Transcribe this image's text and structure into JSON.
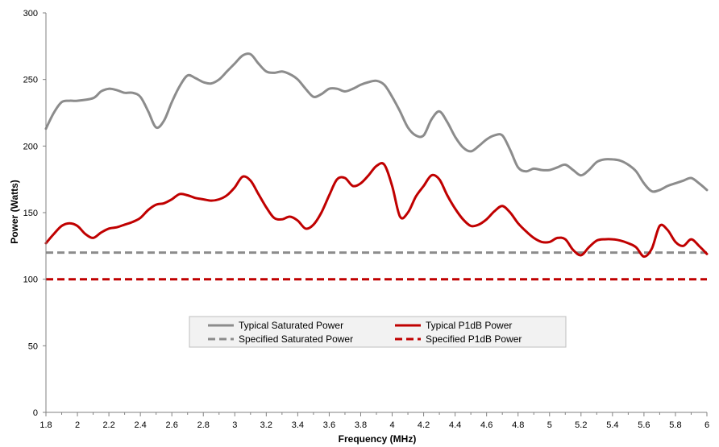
{
  "chart_data": {
    "type": "line",
    "xlabel": "Frequency (MHz)",
    "ylabel": "Power (Watts)",
    "xlim": [
      1.8,
      6
    ],
    "ylim": [
      0,
      300
    ],
    "x_ticks": [
      "1.8",
      "2",
      "2.2",
      "2.4",
      "2.6",
      "2.8",
      "3",
      "3.2",
      "3.4",
      "3.6",
      "3.8",
      "4",
      "4.2",
      "4.4",
      "4.6",
      "4.8",
      "5",
      "5.2",
      "5.4",
      "5.6",
      "5.8",
      "6"
    ],
    "x_tick_values": [
      1.8,
      2.0,
      2.2,
      2.4,
      2.6,
      2.8,
      3.0,
      3.2,
      3.4,
      3.6,
      3.8,
      4.0,
      4.2,
      4.4,
      4.6,
      4.8,
      5.0,
      5.2,
      5.4,
      5.6,
      5.8,
      6.0
    ],
    "y_ticks": [
      "0",
      "50",
      "100",
      "150",
      "200",
      "250",
      "300"
    ],
    "y_tick_values": [
      0,
      50,
      100,
      150,
      200,
      250,
      300
    ],
    "grid": false,
    "legend_position": "bottom-center",
    "series": [
      {
        "name": "Typical Saturated Power",
        "color": "#8c8c8c",
        "style": "solid",
        "x": [
          1.8,
          1.85,
          1.9,
          1.95,
          2.0,
          2.1,
          2.15,
          2.2,
          2.25,
          2.3,
          2.35,
          2.4,
          2.45,
          2.5,
          2.55,
          2.6,
          2.65,
          2.7,
          2.75,
          2.8,
          2.85,
          2.9,
          2.95,
          3.0,
          3.05,
          3.1,
          3.15,
          3.2,
          3.25,
          3.3,
          3.35,
          3.4,
          3.45,
          3.5,
          3.55,
          3.6,
          3.65,
          3.7,
          3.75,
          3.8,
          3.85,
          3.9,
          3.95,
          4.0,
          4.05,
          4.1,
          4.15,
          4.2,
          4.25,
          4.3,
          4.35,
          4.4,
          4.45,
          4.5,
          4.55,
          4.6,
          4.65,
          4.7,
          4.75,
          4.8,
          4.85,
          4.9,
          4.95,
          5.0,
          5.05,
          5.1,
          5.15,
          5.2,
          5.25,
          5.3,
          5.35,
          5.4,
          5.45,
          5.5,
          5.55,
          5.6,
          5.65,
          5.7,
          5.75,
          5.8,
          5.85,
          5.9,
          5.95,
          6.0
        ],
        "y": [
          213,
          225,
          233,
          234,
          234,
          236,
          241,
          243,
          242,
          240,
          240,
          237,
          226,
          214,
          219,
          233,
          245,
          253,
          251,
          248,
          247,
          250,
          256,
          262,
          268,
          269,
          262,
          256,
          255,
          256,
          254,
          250,
          243,
          237,
          239,
          243,
          243,
          241,
          243,
          246,
          248,
          249,
          246,
          237,
          226,
          214,
          208,
          208,
          220,
          226,
          218,
          207,
          199,
          196,
          200,
          205,
          208,
          208,
          197,
          184,
          181,
          183,
          182,
          182,
          184,
          186,
          182,
          178,
          182,
          188,
          190,
          190,
          189,
          186,
          181,
          172,
          166,
          167,
          170,
          172,
          174,
          176,
          172,
          167
        ]
      },
      {
        "name": "Typical P1dB Power",
        "color": "#c00000",
        "style": "solid",
        "x": [
          1.8,
          1.85,
          1.9,
          1.95,
          2.0,
          2.05,
          2.1,
          2.15,
          2.2,
          2.25,
          2.3,
          2.35,
          2.4,
          2.45,
          2.5,
          2.55,
          2.6,
          2.65,
          2.7,
          2.75,
          2.8,
          2.85,
          2.9,
          2.95,
          3.0,
          3.05,
          3.1,
          3.15,
          3.2,
          3.25,
          3.3,
          3.35,
          3.4,
          3.45,
          3.5,
          3.55,
          3.6,
          3.65,
          3.7,
          3.75,
          3.8,
          3.85,
          3.9,
          3.95,
          4.0,
          4.05,
          4.1,
          4.15,
          4.2,
          4.25,
          4.3,
          4.35,
          4.4,
          4.45,
          4.5,
          4.55,
          4.6,
          4.65,
          4.7,
          4.75,
          4.8,
          4.85,
          4.9,
          4.95,
          5.0,
          5.05,
          5.1,
          5.15,
          5.2,
          5.25,
          5.3,
          5.35,
          5.4,
          5.45,
          5.5,
          5.55,
          5.6,
          5.65,
          5.7,
          5.75,
          5.8,
          5.85,
          5.9,
          5.95,
          6.0
        ],
        "y": [
          127,
          134,
          140,
          142,
          140,
          134,
          131,
          135,
          138,
          139,
          141,
          143,
          146,
          152,
          156,
          157,
          160,
          164,
          163,
          161,
          160,
          159,
          160,
          163,
          169,
          177,
          174,
          164,
          154,
          146,
          145,
          147,
          144,
          138,
          141,
          150,
          163,
          175,
          176,
          170,
          172,
          178,
          185,
          186,
          170,
          147,
          150,
          162,
          170,
          178,
          175,
          163,
          153,
          145,
          140,
          141,
          145,
          151,
          155,
          150,
          142,
          136,
          131,
          128,
          128,
          131,
          130,
          122,
          118,
          124,
          129,
          130,
          130,
          129,
          127,
          124,
          117,
          123,
          140,
          137,
          128,
          125,
          130,
          125,
          119
        ]
      },
      {
        "name": "Specified Saturated Power",
        "color": "#8c8c8c",
        "style": "dashed",
        "x": [
          1.8,
          6.0
        ],
        "y": [
          120,
          120
        ]
      },
      {
        "name": "Specified P1dB Power",
        "color": "#c00000",
        "style": "dashed",
        "x": [
          1.8,
          6.0
        ],
        "y": [
          100,
          100
        ]
      }
    ]
  }
}
